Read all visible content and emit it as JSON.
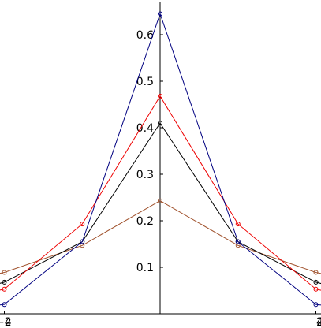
{
  "chart_data": {
    "type": "line",
    "title": "",
    "xlabel": "",
    "ylabel": "",
    "xlim": [
      -4,
      4
    ],
    "ylim": [
      0,
      0.65
    ],
    "grid": false,
    "legend": "none",
    "x_ticks": [
      -4,
      -2,
      2,
      4
    ],
    "x_tick_labels": [
      "−4",
      "−2",
      "2",
      "4"
    ],
    "y_ticks": [
      0.1,
      0.2,
      0.3,
      0.4,
      0.5,
      0.6
    ],
    "y_tick_labels": [
      "0.1",
      "0.2",
      "0.3",
      "0.4",
      "0.5",
      "0.6"
    ],
    "x": [
      -4,
      -3,
      -2,
      -1,
      0,
      1,
      2,
      3,
      4
    ],
    "series": [
      {
        "color": "#a0522d",
        "values": [
          0.03,
          0.053,
          0.089,
          0.147,
          0.243,
          0.147,
          0.089,
          0.053,
          0.03
        ]
      },
      {
        "color": "#000000",
        "values": [
          0.01,
          0.025,
          0.068,
          0.155,
          0.41,
          0.155,
          0.068,
          0.025,
          0.01
        ]
      },
      {
        "color": "#ee0000",
        "values": [
          0.005,
          0.017,
          0.053,
          0.193,
          0.468,
          0.193,
          0.053,
          0.017,
          0.005
        ]
      },
      {
        "color": "#000080",
        "values": [
          0.0,
          0.002,
          0.02,
          0.155,
          0.645,
          0.155,
          0.02,
          0.002,
          0.0
        ]
      }
    ]
  }
}
